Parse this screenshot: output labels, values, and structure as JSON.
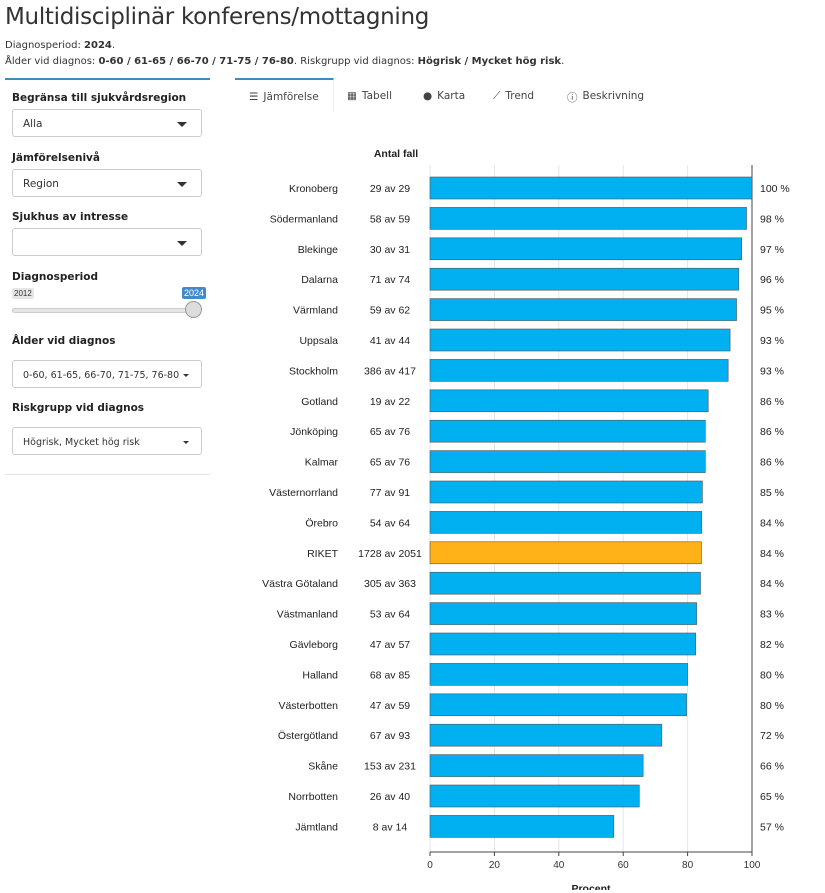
{
  "title": "Multidisciplinär konferens/mottagning",
  "summary": {
    "period_label": "Diagnosperiod: ",
    "period_value": "2024",
    "age_label": "Ålder vid diagnos: ",
    "age_value": "0-60 / 61-65 / 66-70 / 71-75 / 76-80",
    "risk_label": ". Riskgrupp vid diagnos: ",
    "risk_value": "Högrisk / Mycket hög risk"
  },
  "sidebar": {
    "region_label": "Begränsa till sjukvårdsregion",
    "region_value": "Alla",
    "level_label": "Jämförelsenivå",
    "level_value": "Region",
    "hospital_label": "Sjukhus av intresse",
    "hospital_value": "",
    "period_label": "Diagnosperiod",
    "slider_min": "2012",
    "slider_value": "2024",
    "age_label": "Ålder vid diagnos",
    "age_value": "0-60, 61-65, 66-70, 71-75, 76-80",
    "risk_label": "Riskgrupp vid diagnos",
    "risk_value": "Högrisk, Mycket hög risk"
  },
  "tabs": [
    {
      "label": "Jämförelse",
      "icon": "bar-chart-icon"
    },
    {
      "label": "Tabell",
      "icon": "table-icon"
    },
    {
      "label": "Karta",
      "icon": "map-marker-icon"
    },
    {
      "label": "Trend",
      "icon": "line-chart-icon"
    },
    {
      "label": "Beskrivning",
      "icon": "info-icon"
    }
  ],
  "colors": {
    "bar": "#00b0f0",
    "highlight": "#ffb118",
    "accent": "#3c8dbc"
  },
  "chart_data": {
    "type": "bar",
    "orientation": "horizontal",
    "count_header": "Antal fall",
    "xlabel": "Procent",
    "xlim": [
      0,
      100
    ],
    "xticks": [
      "0",
      "20",
      "40",
      "60",
      "80",
      "100"
    ],
    "rows": [
      {
        "name": "Kronoberg",
        "count": "29 av 29",
        "value": 100,
        "label": "100 %"
      },
      {
        "name": "Södermanland",
        "count": "58 av 59",
        "value": 98.3,
        "label": "98 %"
      },
      {
        "name": "Blekinge",
        "count": "30 av 31",
        "value": 96.8,
        "label": "97 %"
      },
      {
        "name": "Dalarna",
        "count": "71 av 74",
        "value": 95.9,
        "label": "96 %"
      },
      {
        "name": "Värmland",
        "count": "59 av 62",
        "value": 95.2,
        "label": "95 %"
      },
      {
        "name": "Uppsala",
        "count": "41 av 44",
        "value": 93.2,
        "label": "93 %"
      },
      {
        "name": "Stockholm",
        "count": "386 av 417",
        "value": 92.6,
        "label": "93 %"
      },
      {
        "name": "Gotland",
        "count": "19 av 22",
        "value": 86.4,
        "label": "86 %"
      },
      {
        "name": "Jönköping",
        "count": "65 av 76",
        "value": 85.5,
        "label": "86 %"
      },
      {
        "name": "Kalmar",
        "count": "65 av 76",
        "value": 85.5,
        "label": "86 %"
      },
      {
        "name": "Västernorrland",
        "count": "77 av 91",
        "value": 84.6,
        "label": "85 %"
      },
      {
        "name": "Örebro",
        "count": "54 av 64",
        "value": 84.4,
        "label": "84 %"
      },
      {
        "name": "RIKET",
        "count": "1728 av 2051",
        "value": 84.3,
        "label": "84 %",
        "highlight": true
      },
      {
        "name": "Västra Götaland",
        "count": "305 av 363",
        "value": 84.0,
        "label": "84 %"
      },
      {
        "name": "Västmanland",
        "count": "53 av 64",
        "value": 82.8,
        "label": "83 %"
      },
      {
        "name": "Gävleborg",
        "count": "47 av 57",
        "value": 82.5,
        "label": "82 %"
      },
      {
        "name": "Halland",
        "count": "68 av 85",
        "value": 80.0,
        "label": "80 %"
      },
      {
        "name": "Västerbotten",
        "count": "47 av 59",
        "value": 79.7,
        "label": "80 %"
      },
      {
        "name": "Östergötland",
        "count": "67 av 93",
        "value": 72.0,
        "label": "72 %"
      },
      {
        "name": "Skåne",
        "count": "153 av 231",
        "value": 66.2,
        "label": "66 %"
      },
      {
        "name": "Norrbotten",
        "count": "26 av 40",
        "value": 65.0,
        "label": "65 %"
      },
      {
        "name": "Jämtland",
        "count": "8 av 14",
        "value": 57.1,
        "label": "57 %"
      }
    ]
  }
}
